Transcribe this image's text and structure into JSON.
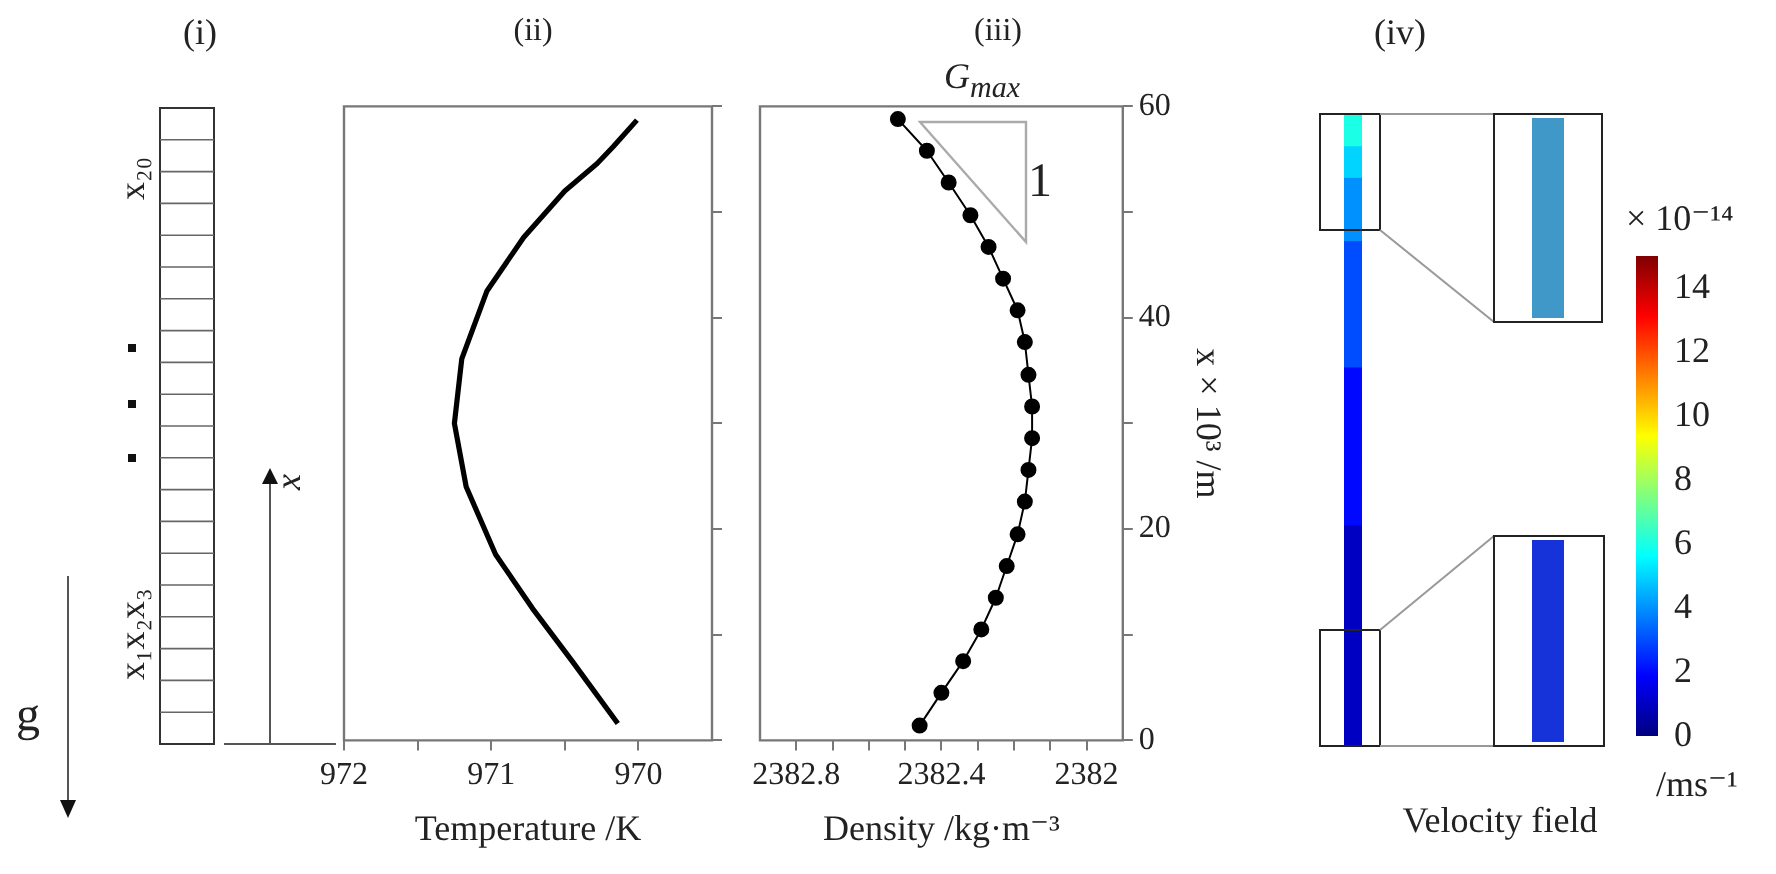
{
  "chart_data": [
    {
      "type": "other",
      "title": "(i)",
      "annotations": [
        "x₂₀",
        "x₁x₂x₃",
        "x",
        "g"
      ]
    },
    {
      "type": "line",
      "title": "(ii)",
      "xlabel": "Temperature /K",
      "xlim": [
        972,
        969.5
      ],
      "xticks": [
        972,
        {
          "value": 971.5,
          "label": null
        },
        971,
        {
          "value": 970.5,
          "label": null
        },
        970
      ],
      "ylim": [
        0,
        60
      ],
      "yticks": [
        {
          "value": 0,
          "label": null
        },
        {
          "value": 10,
          "label": null
        },
        {
          "value": 20,
          "label": null
        },
        {
          "value": 30,
          "label": null
        },
        {
          "value": 40,
          "label": null
        },
        {
          "value": 50,
          "label": null
        },
        {
          "value": 60,
          "label": null
        }
      ],
      "tick_labels": "x",
      "grid": false,
      "legend": false,
      "marker": "none",
      "line_style": "solid",
      "series": [
        {
          "color": "#000000",
          "x": [
            970.14,
            970.45,
            970.72,
            970.97,
            971.17,
            971.25,
            971.2,
            971.03,
            970.78,
            970.5,
            970.28,
            970.17,
            970.01
          ],
          "values": [
            1.6,
            7.5,
            12.5,
            17.6,
            24,
            30,
            36.1,
            42.5,
            47.6,
            52,
            54.6,
            56.2,
            58.7
          ]
        }
      ]
    },
    {
      "type": "line",
      "title": "(iii)",
      "xlabel": "Density /kg·m⁻³",
      "ylabel": "x × 10³ /m",
      "xlim": [
        2382.9,
        2381.9
      ],
      "xticks": [
        2382.8,
        {
          "value": 2382.7,
          "label": null
        },
        {
          "value": 2382.6,
          "label": null
        },
        {
          "value": 2382.5,
          "label": null
        },
        2382.4,
        {
          "value": 2382.3,
          "label": null
        },
        {
          "value": 2382.2,
          "label": null
        },
        {
          "value": 2382.1,
          "label": null
        },
        2382.0
      ],
      "ylim": [
        0,
        60
      ],
      "yticks": [
        0,
        {
          "value": 10,
          "label": null
        },
        20,
        {
          "value": 30,
          "label": null
        },
        40,
        {
          "value": 50,
          "label": null
        },
        60
      ],
      "grid": false,
      "legend": false,
      "marker": "circle",
      "line_style": "solid",
      "annotations": [
        "G$_{max}$",
        "1"
      ],
      "series": [
        {
          "color": "#000000",
          "x": [
            2382.46,
            2382.4,
            2382.34,
            2382.29,
            2382.25,
            2382.22,
            2382.19,
            2382.17,
            2382.16,
            2382.15,
            2382.15,
            2382.16,
            2382.17,
            2382.19,
            2382.23,
            2382.27,
            2382.32,
            2382.38,
            2382.44,
            2382.52
          ],
          "values": [
            1.4,
            4.5,
            7.5,
            10.5,
            13.5,
            16.5,
            19.5,
            22.6,
            25.6,
            28.6,
            31.6,
            34.6,
            37.7,
            40.7,
            43.7,
            46.7,
            49.7,
            52.8,
            55.8,
            58.8
          ]
        }
      ]
    },
    {
      "type": "heatmap",
      "title": "(iv)",
      "categories": [
        null
      ],
      "y_categories": [
        null,
        null,
        null,
        null,
        null,
        null,
        null,
        null,
        null,
        null,
        null,
        null,
        null,
        null,
        null,
        null,
        null,
        null,
        null,
        null
      ],
      "cells": [
        [
          6
        ],
        [
          5
        ],
        [
          4
        ],
        [
          4
        ],
        [
          3
        ],
        [
          3
        ],
        [
          3
        ],
        [
          3
        ],
        [
          2
        ],
        [
          2
        ],
        [
          2
        ],
        [
          2
        ],
        [
          2
        ],
        [
          1
        ],
        [
          1
        ],
        [
          1
        ],
        [
          1
        ],
        [
          1
        ],
        [
          1
        ],
        [
          1
        ]
      ],
      "xlabel": "Velocity field",
      "clabel": "/ms⁻¹",
      "clim": [
        0,
        15
      ],
      "cticks": [
        0,
        2,
        4,
        6,
        8,
        10,
        12,
        14
      ],
      "annotations": [
        "× 10⁻¹⁴"
      ]
    }
  ]
}
